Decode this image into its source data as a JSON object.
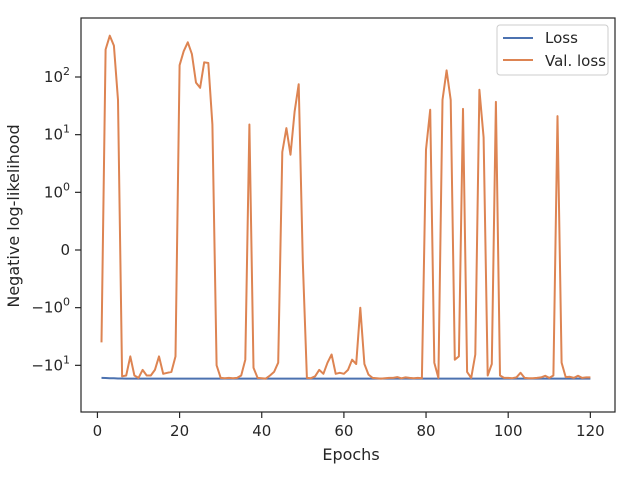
{
  "chart_data": {
    "type": "line",
    "title": "",
    "xlabel": "Epochs",
    "ylabel": "Negative log-likelihood",
    "yscale": "symlog",
    "xlim": [
      -4,
      126
    ],
    "grid": false,
    "legend_position": "top-right",
    "x_ticks": [
      0,
      20,
      40,
      60,
      80,
      100,
      120
    ],
    "y_ticks": [
      {
        "value": -10,
        "label": "−10",
        "exp": "1"
      },
      {
        "value": -1,
        "label": "−10",
        "exp": "0"
      },
      {
        "value": 0,
        "label": "0",
        "exp": ""
      },
      {
        "value": 1,
        "label": "10",
        "exp": "0"
      },
      {
        "value": 10,
        "label": "10",
        "exp": "1"
      },
      {
        "value": 100,
        "label": "10",
        "exp": "2"
      }
    ],
    "series": [
      {
        "name": "Loss",
        "color": "#4c72b0",
        "x": [
          1,
          2,
          3,
          4,
          5,
          6,
          7,
          8,
          9,
          10,
          11,
          12,
          13,
          14,
          15,
          16,
          17,
          18,
          19,
          20,
          21,
          22,
          23,
          24,
          25,
          26,
          27,
          28,
          29,
          30,
          31,
          32,
          33,
          34,
          35,
          36,
          37,
          38,
          39,
          40,
          41,
          42,
          43,
          44,
          45,
          46,
          47,
          48,
          49,
          50,
          51,
          52,
          53,
          54,
          55,
          56,
          57,
          58,
          59,
          60,
          61,
          62,
          63,
          64,
          65,
          66,
          67,
          68,
          69,
          70,
          71,
          72,
          73,
          74,
          75,
          76,
          77,
          78,
          79,
          80,
          81,
          82,
          83,
          84,
          85,
          86,
          87,
          88,
          89,
          90,
          91,
          92,
          93,
          94,
          95,
          96,
          97,
          98,
          99,
          100,
          101,
          102,
          103,
          104,
          105,
          106,
          107,
          108,
          109,
          110,
          111,
          112,
          113,
          114,
          115,
          116,
          117,
          118,
          119,
          120
        ],
        "y": [
          -16.5,
          -16.6,
          -16.7,
          -16.8,
          -16.9,
          -16.9,
          -17,
          -17,
          -17,
          -17,
          -17,
          -17,
          -17,
          -17,
          -17,
          -17,
          -17,
          -17,
          -17,
          -17,
          -17,
          -17,
          -17,
          -17,
          -17,
          -17,
          -17,
          -17,
          -17,
          -17,
          -17,
          -17,
          -17,
          -17,
          -17,
          -17,
          -17,
          -17,
          -17,
          -17,
          -17,
          -17,
          -17,
          -17,
          -17,
          -17,
          -17,
          -17,
          -17,
          -17,
          -17,
          -17,
          -17,
          -17,
          -17,
          -17,
          -17,
          -17,
          -17,
          -17,
          -17,
          -17,
          -17,
          -17,
          -17,
          -17,
          -17,
          -17,
          -17,
          -17,
          -17,
          -17,
          -17,
          -17,
          -17,
          -17,
          -17,
          -17,
          -17,
          -17,
          -17,
          -17,
          -17,
          -17,
          -17,
          -17,
          -17,
          -17,
          -17,
          -17,
          -17,
          -17,
          -17,
          -17,
          -17,
          -17,
          -17,
          -17,
          -17,
          -17,
          -17,
          -17,
          -17,
          -17,
          -17,
          -17,
          -17,
          -17,
          -17,
          -17,
          -17,
          -17,
          -17,
          -17,
          -17,
          -17,
          -17,
          -17,
          -17,
          -17
        ]
      },
      {
        "name": "Val. loss",
        "color": "#dd8452",
        "x": [
          1,
          2,
          3,
          4,
          5,
          6,
          7,
          8,
          9,
          10,
          11,
          12,
          13,
          14,
          15,
          16,
          17,
          18,
          19,
          20,
          21,
          22,
          23,
          24,
          25,
          26,
          27,
          28,
          29,
          30,
          31,
          32,
          33,
          34,
          35,
          36,
          37,
          38,
          39,
          40,
          41,
          42,
          43,
          44,
          45,
          46,
          47,
          48,
          49,
          50,
          51,
          52,
          53,
          54,
          55,
          56,
          57,
          58,
          59,
          60,
          61,
          62,
          63,
          64,
          65,
          66,
          67,
          68,
          69,
          70,
          71,
          72,
          73,
          74,
          75,
          76,
          77,
          78,
          79,
          80,
          81,
          82,
          83,
          84,
          85,
          86,
          87,
          88,
          89,
          90,
          91,
          92,
          93,
          94,
          95,
          96,
          97,
          98,
          99,
          100,
          101,
          102,
          103,
          104,
          105,
          106,
          107,
          108,
          109,
          110,
          111,
          112,
          113,
          114,
          115,
          116,
          117,
          118,
          119,
          120
        ],
        "y": [
          -4,
          300,
          520,
          350,
          40,
          -15.5,
          -15,
          -7,
          -15,
          -16.5,
          -12,
          -15,
          -15,
          -12,
          -7,
          -14,
          -13.5,
          -13,
          -7,
          160,
          280,
          400,
          250,
          80,
          65,
          180,
          175,
          15,
          -10,
          -16.5,
          -16.7,
          -16.5,
          -16.8,
          -16.5,
          -15,
          -8,
          15,
          -11,
          -16.5,
          -16.7,
          -17,
          -15,
          -13,
          -9,
          5,
          13,
          4.5,
          25,
          75,
          -0.2,
          -16.5,
          -16.7,
          -15.5,
          -12,
          -14,
          -9,
          -6.5,
          -14,
          -13.5,
          -14,
          -12,
          -8,
          -9.5,
          -1,
          -9.5,
          -14.5,
          -16.5,
          -16.8,
          -17,
          -16.7,
          -16.5,
          -16.5,
          -16,
          -16.8,
          -16.2,
          -16.5,
          -16.7,
          -16.5,
          -16.8,
          5.5,
          27,
          -9,
          -16.5,
          40,
          130,
          40,
          -8,
          -7,
          28,
          -13,
          -16.5,
          -6.5,
          60,
          9,
          -15,
          -9.5,
          37,
          -15,
          -16.5,
          -16.5,
          -16.7,
          -16.2,
          -13.5,
          -16.5,
          -16.8,
          -16.7,
          -16.5,
          -16.2,
          -15.2,
          -16.5,
          -15,
          21,
          -9,
          -16,
          -15.8,
          -16.5,
          -15.2,
          -16.5,
          -16.2,
          -16.2
        ]
      }
    ]
  }
}
